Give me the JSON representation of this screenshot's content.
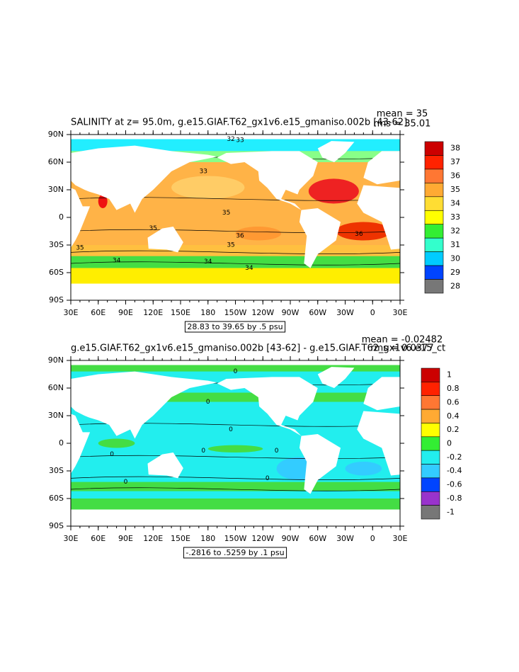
{
  "panels": [
    {
      "title": "SALINITY at z=  95.0m, g.e15.GIAF.T62_gx1v6.e15_gmaniso.002b [43-62]",
      "mean": "mean = 35",
      "rms": "rms = 35.01",
      "x_labels": [
        "30E",
        "60E",
        "90E",
        "120E",
        "150E",
        "180",
        "150W",
        "120W",
        "90W",
        "60W",
        "30W",
        "0",
        "30E"
      ],
      "y_labels": [
        "90N",
        "60N",
        "30N",
        "0",
        "30S",
        "60S",
        "90S"
      ],
      "colorbar": [
        "38",
        "37",
        "36",
        "35",
        "34",
        "33",
        "32",
        "31",
        "30",
        "29",
        "28"
      ],
      "range_box": "28.83 to 39.65 by .5 psu",
      "contour_labels": [
        "33",
        "32",
        "33",
        "35",
        "35",
        "36",
        "35",
        "36",
        "35",
        "34",
        "34",
        "34"
      ]
    },
    {
      "title": "g.e15.GIAF.T62_gx1v6.e15_gmaniso.002b [43-62] - g.e15.GIAF.T62_gx1v6.e15_ct",
      "mean": "mean = -0.02482",
      "rms": "rms = 0.0377",
      "x_labels": [
        "30E",
        "60E",
        "90E",
        "120E",
        "150E",
        "180",
        "150W",
        "120W",
        "90W",
        "60W",
        "30W",
        "0",
        "30E"
      ],
      "y_labels": [
        "90N",
        "60N",
        "30N",
        "0",
        "30S",
        "60S",
        "90S"
      ],
      "colorbar": [
        "1",
        "0.8",
        "0.6",
        "0.4",
        "0.2",
        "0",
        "-0.2",
        "-0.4",
        "-0.6",
        "-0.8",
        "-1"
      ],
      "range_box": "-.2816 to .5259 by .1 psu",
      "contour_labels": [
        "0",
        "0",
        "0",
        "0",
        "0",
        "0",
        "0",
        "0"
      ]
    }
  ]
}
